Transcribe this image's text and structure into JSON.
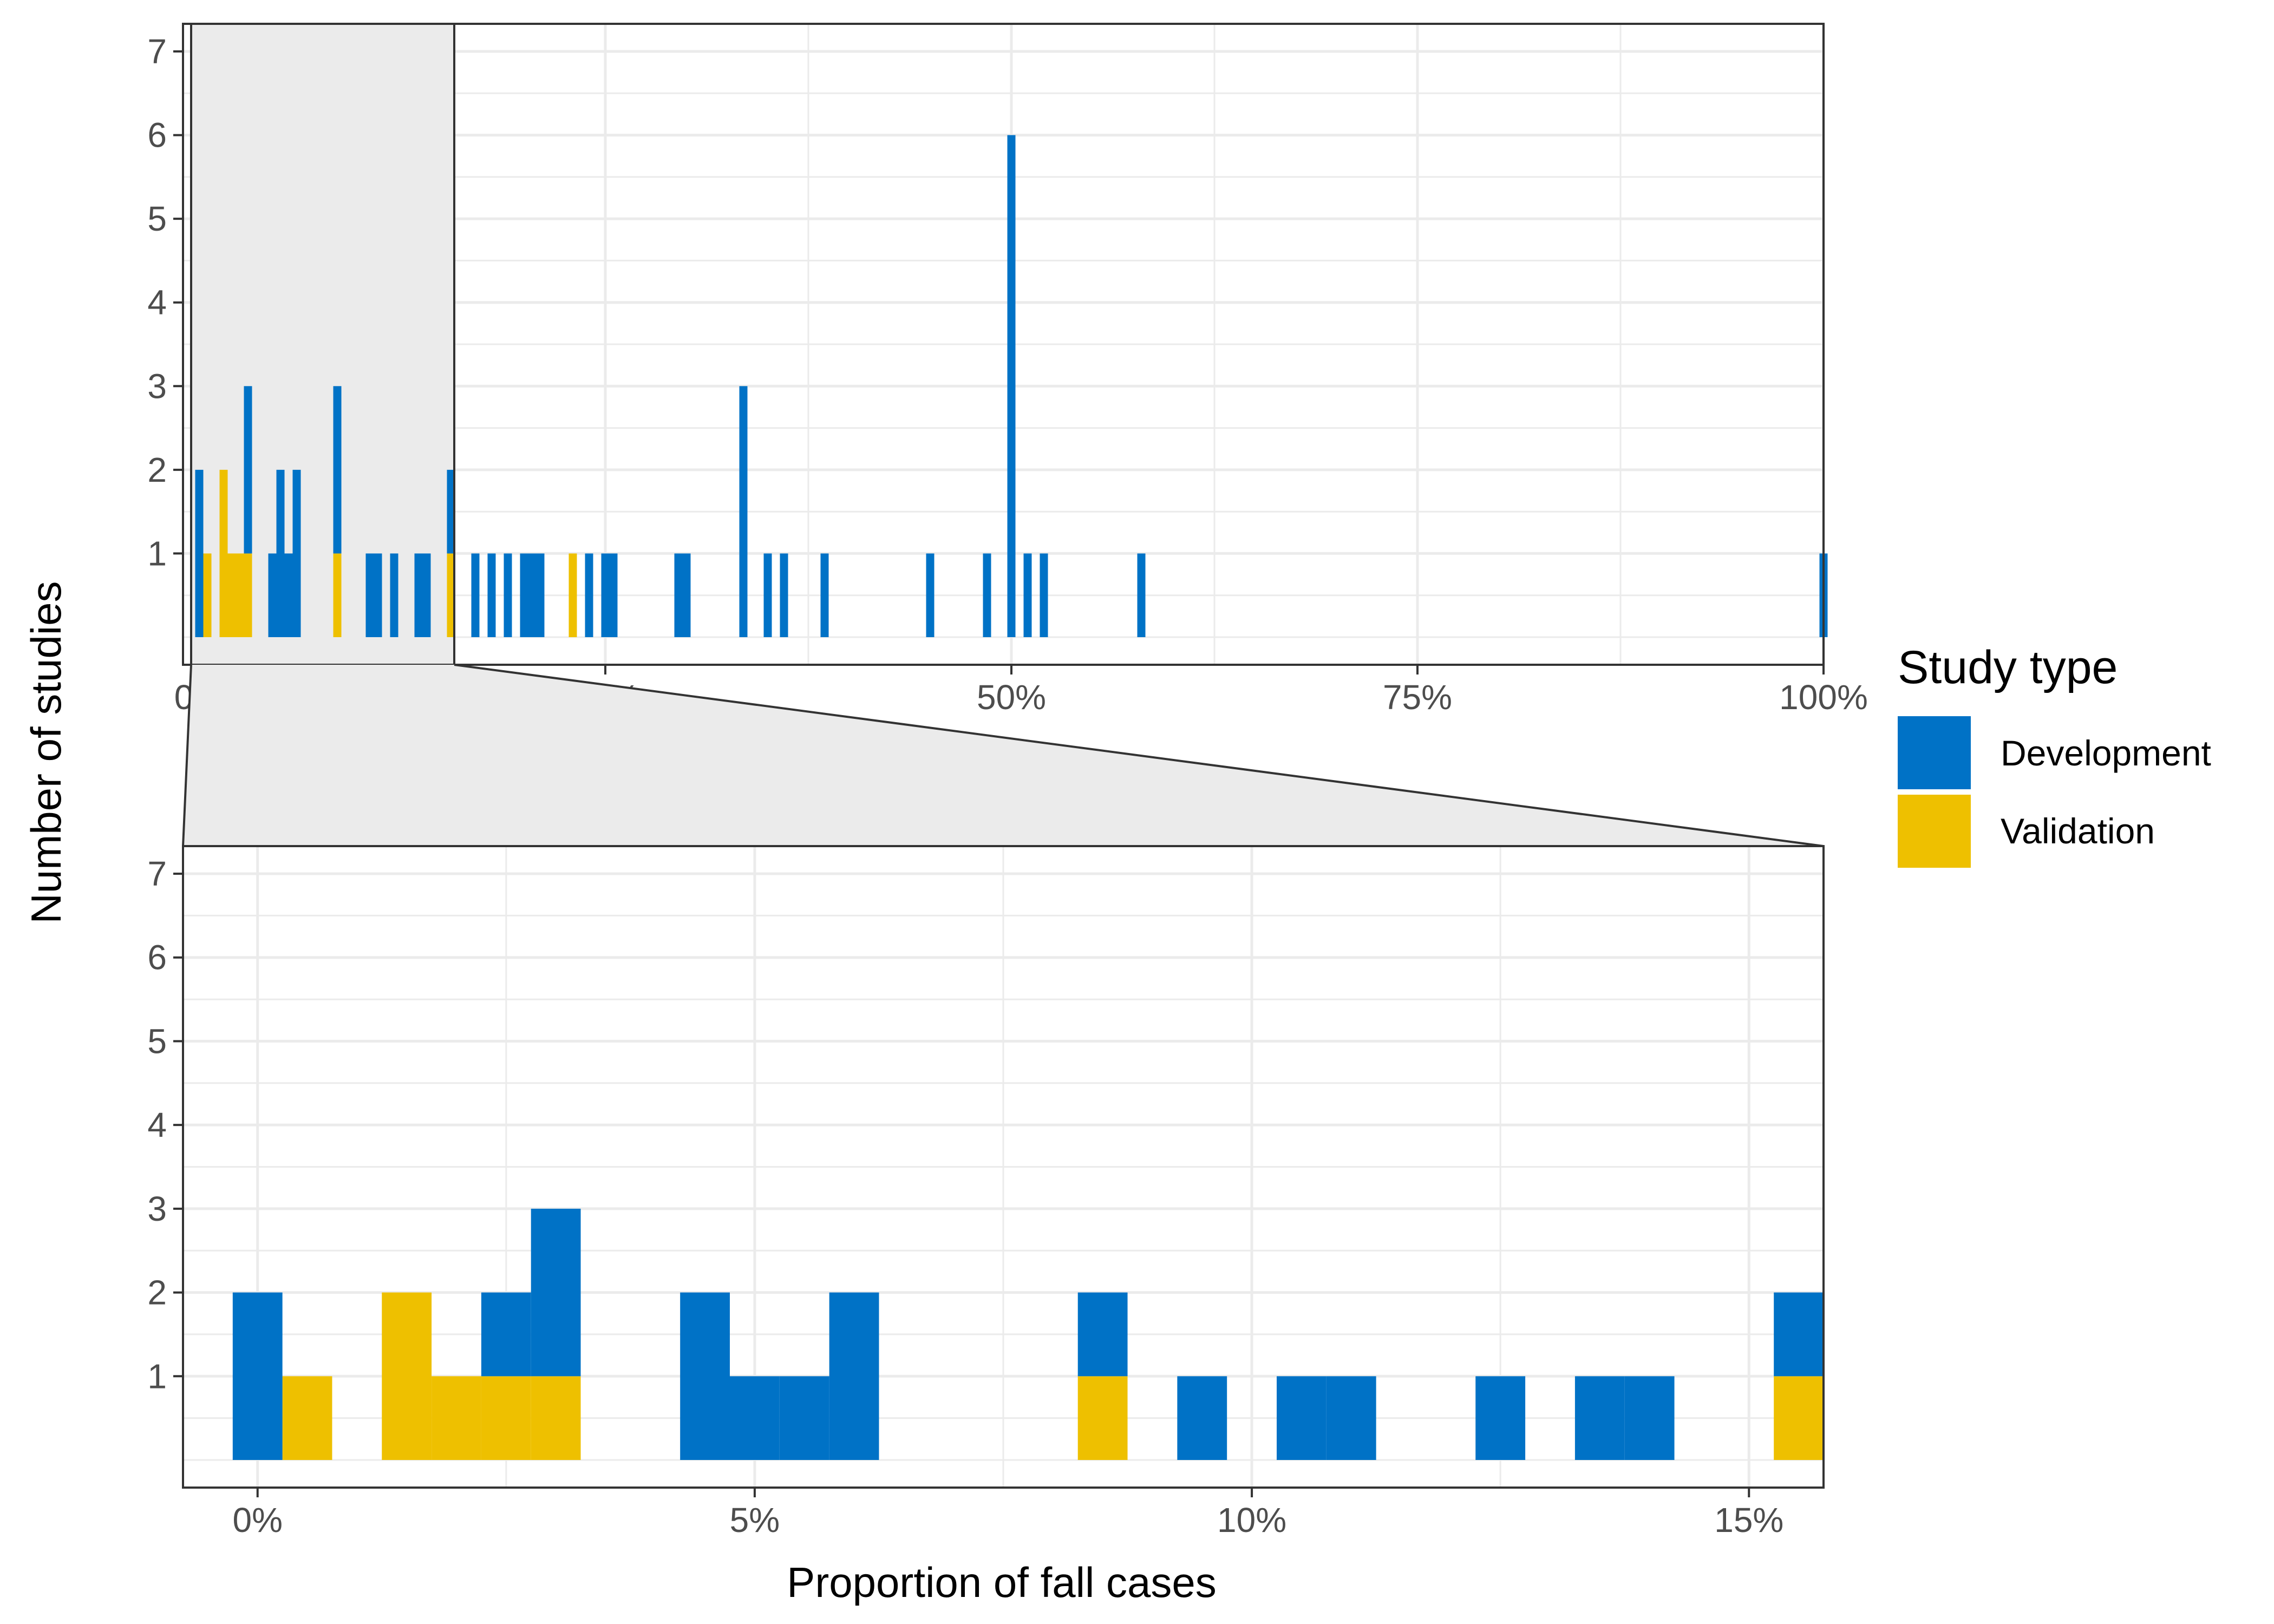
{
  "chart_data": [
    {
      "type": "bar",
      "panel": "overview",
      "stacked": true,
      "xlim": [
        -0.01,
        1.0
      ],
      "ylim": [
        0,
        7
      ],
      "x_ticks": [
        "0%",
        "25%",
        "50%",
        "75%",
        "100%"
      ],
      "y_ticks": [
        "1",
        "2",
        "3",
        "4",
        "5",
        "6",
        "7"
      ],
      "zoom_range": [
        -0.005,
        0.157
      ],
      "series": [
        {
          "name": "Development",
          "x": [
            0.0,
            0.03,
            0.045,
            0.05,
            0.055,
            0.06,
            0.085,
            0.105,
            0.11,
            0.12,
            0.135,
            0.14,
            0.155,
            0.17,
            0.18,
            0.19,
            0.2,
            0.205,
            0.21,
            0.24,
            0.25,
            0.255,
            0.295,
            0.3,
            0.335,
            0.35,
            0.36,
            0.385,
            0.45,
            0.485,
            0.5,
            0.51,
            0.52,
            0.58,
            1.0
          ],
          "values": [
            2,
            2,
            1,
            2,
            1,
            2,
            2,
            1,
            1,
            1,
            1,
            1,
            1,
            1,
            1,
            1,
            1,
            1,
            1,
            1,
            1,
            1,
            1,
            1,
            3,
            1,
            1,
            1,
            1,
            1,
            6,
            1,
            1,
            1,
            1
          ]
        },
        {
          "name": "Validation",
          "x": [
            0.005,
            0.015,
            0.02,
            0.025,
            0.03,
            0.085,
            0.155,
            0.23
          ],
          "values": [
            1,
            2,
            1,
            1,
            1,
            1,
            1,
            1
          ]
        }
      ]
    },
    {
      "type": "bar",
      "panel": "zoom",
      "stacked": true,
      "xlim": [
        -0.0075,
        0.1575
      ],
      "ylim": [
        0,
        7
      ],
      "x_ticks": [
        "0%",
        "5%",
        "10%",
        "15%"
      ],
      "y_ticks": [
        "1",
        "2",
        "3",
        "4",
        "5",
        "6",
        "7"
      ],
      "xlabel": "Proportion of fall cases",
      "ylabel": "Number of studies",
      "legend_title": "Study type",
      "legend_position": "right",
      "series": [
        {
          "name": "Development",
          "x": [
            0.0,
            0.025,
            0.03,
            0.045,
            0.05,
            0.055,
            0.06,
            0.085,
            0.095,
            0.105,
            0.11,
            0.125,
            0.135,
            0.14,
            0.155
          ],
          "values": [
            2,
            1,
            2,
            2,
            1,
            1,
            2,
            1,
            1,
            1,
            1,
            1,
            1,
            1,
            1
          ]
        },
        {
          "name": "Validation",
          "x": [
            0.005,
            0.015,
            0.02,
            0.025,
            0.03,
            0.085,
            0.155
          ],
          "values": [
            1,
            2,
            1,
            1,
            1,
            1,
            1
          ]
        }
      ],
      "grid": true
    }
  ],
  "colors": {
    "Development": "#0072C6",
    "Validation": "#EEC000",
    "zoom_shade": "#EBEBEB",
    "grid": "#EBEBEB",
    "frame": "#333333"
  }
}
